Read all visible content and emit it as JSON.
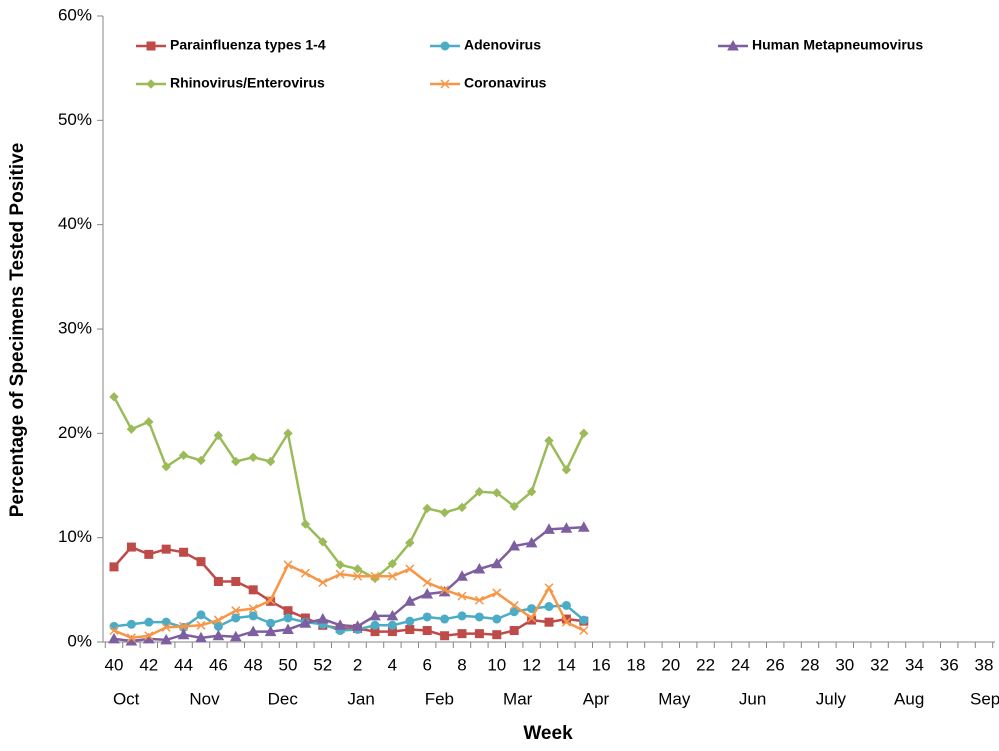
{
  "chart_data": {
    "type": "line",
    "x_label": "Week",
    "y_label": "Percentage of Specimens Tested Positive",
    "categories": [
      40,
      null,
      42,
      null,
      44,
      null,
      46,
      null,
      48,
      null,
      50,
      null,
      52,
      null,
      2,
      null,
      4,
      null,
      6,
      null,
      8,
      null,
      10,
      null,
      12,
      null,
      14,
      null,
      16,
      null,
      18,
      null,
      20,
      null,
      22,
      null,
      24,
      null,
      26,
      null,
      28,
      null,
      30,
      null,
      32,
      null,
      34,
      null,
      36,
      null,
      38,
      null
    ],
    "months": [
      "Oct",
      "Nov",
      "Dec",
      "Jan",
      "Feb",
      "Mar",
      "Apr",
      "May",
      "Jun",
      "July",
      "Aug",
      "Sept"
    ],
    "ylim": [
      0,
      60
    ],
    "yticks": [
      {
        "value": 0,
        "label": "0%"
      },
      {
        "value": 10,
        "label": "10%"
      },
      {
        "value": 20,
        "label": "20%"
      },
      {
        "value": 30,
        "label": "30%"
      },
      {
        "value": 40,
        "label": "40%"
      },
      {
        "value": 50,
        "label": "50%"
      },
      {
        "value": 60,
        "label": "60%"
      }
    ],
    "grid": false,
    "legend": "top",
    "series": [
      {
        "name": "Parainfluenza types 1-4",
        "color": "#be4b48",
        "marker": "square",
        "values": [
          7.2,
          9.1,
          8.4,
          8.9,
          8.6,
          7.7,
          5.8,
          5.8,
          5.0,
          3.9,
          3.0,
          2.3,
          1.6,
          1.3,
          1.3,
          1.0,
          1.0,
          1.2,
          1.1,
          0.6,
          0.8,
          0.8,
          0.7,
          1.1,
          2.1,
          1.9,
          2.2,
          2.0,
          null,
          null,
          null,
          null,
          null,
          null,
          null,
          null,
          null,
          null,
          null,
          null,
          null,
          null,
          null,
          null,
          null,
          null,
          null,
          null,
          null,
          null,
          null,
          null
        ]
      },
      {
        "name": "Adenovirus",
        "color": "#4bacc6",
        "marker": "circle",
        "values": [
          1.5,
          1.7,
          1.9,
          1.9,
          1.4,
          2.6,
          1.5,
          2.3,
          2.5,
          1.8,
          2.3,
          1.9,
          1.7,
          1.1,
          1.2,
          1.6,
          1.6,
          2.0,
          2.4,
          2.2,
          2.5,
          2.4,
          2.2,
          2.9,
          3.2,
          3.4,
          3.5,
          2.1,
          null,
          null,
          null,
          null,
          null,
          null,
          null,
          null,
          null,
          null,
          null,
          null,
          null,
          null,
          null,
          null,
          null,
          null,
          null,
          null,
          null,
          null,
          null,
          null
        ]
      },
      {
        "name": "Human Metapneumovirus",
        "color": "#7d5fa0",
        "marker": "triangle",
        "values": [
          0.3,
          0.1,
          0.3,
          0.2,
          0.7,
          0.4,
          0.6,
          0.5,
          1.0,
          1.0,
          1.2,
          1.8,
          2.2,
          1.6,
          1.5,
          2.5,
          2.5,
          3.9,
          4.6,
          4.8,
          6.3,
          7.0,
          7.5,
          9.2,
          9.5,
          10.8,
          10.9,
          11.0,
          null,
          null,
          null,
          null,
          null,
          null,
          null,
          null,
          null,
          null,
          null,
          null,
          null,
          null,
          null,
          null,
          null,
          null,
          null,
          null,
          null,
          null,
          null,
          null
        ]
      },
      {
        "name": "Rhinovirus/Enterovirus",
        "color": "#9bbb59",
        "marker": "diamond",
        "values": [
          23.5,
          20.4,
          21.1,
          16.8,
          17.9,
          17.4,
          19.8,
          17.3,
          17.7,
          17.3,
          20.0,
          11.3,
          9.6,
          7.4,
          7.0,
          6.1,
          7.5,
          9.5,
          12.8,
          12.4,
          12.9,
          14.4,
          14.3,
          13.0,
          14.4,
          19.3,
          16.5,
          20.0,
          null,
          null,
          null,
          null,
          null,
          null,
          null,
          null,
          null,
          null,
          null,
          null,
          null,
          null,
          null,
          null,
          null,
          null,
          null,
          null,
          null,
          null,
          null,
          null
        ]
      },
      {
        "name": "Coronavirus",
        "color": "#f79646",
        "marker": "x",
        "values": [
          1.1,
          0.4,
          0.6,
          1.4,
          1.5,
          1.6,
          2.1,
          3.0,
          3.2,
          4.0,
          7.4,
          6.6,
          5.7,
          6.5,
          6.3,
          6.3,
          6.3,
          7.0,
          5.7,
          5.0,
          4.4,
          4.0,
          4.7,
          3.5,
          2.3,
          5.2,
          1.9,
          1.1,
          null,
          null,
          null,
          null,
          null,
          null,
          null,
          null,
          null,
          null,
          null,
          null,
          null,
          null,
          null,
          null,
          null,
          null,
          null,
          null,
          null,
          null,
          null,
          null
        ]
      }
    ]
  }
}
